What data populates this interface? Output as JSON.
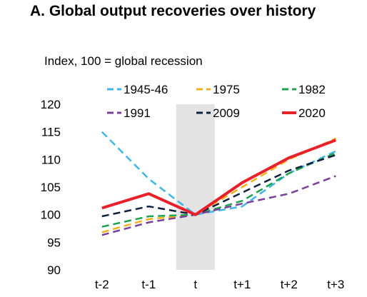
{
  "chart_data": {
    "type": "line",
    "title": "A. Global output recoveries over history",
    "ylabel": "Index, 100 = global recession",
    "xlabel": "",
    "categories": [
      "t-2",
      "t-1",
      "t",
      "t+1",
      "t+2",
      "t+3"
    ],
    "ylim": [
      90,
      120
    ],
    "yticks": [
      90,
      95,
      100,
      105,
      110,
      115,
      120
    ],
    "grid": false,
    "legend_position": "top",
    "shaded_category": "t",
    "shaded_color": "#e3e3e3",
    "series": [
      {
        "name": "1945-46",
        "values": [
          115.0,
          106.5,
          100.0,
          101.5,
          107.5,
          111.5
        ],
        "color": "#3fb7e8",
        "dash": "dashed",
        "width": 2.5
      },
      {
        "name": "1975",
        "values": [
          96.8,
          99.2,
          100.0,
          105.0,
          110.0,
          113.8
        ],
        "color": "#f2b21c",
        "dash": "dashed",
        "width": 2.5
      },
      {
        "name": "1982",
        "values": [
          97.8,
          99.7,
          100.0,
          102.5,
          107.5,
          111.2
        ],
        "color": "#1ca34f",
        "dash": "dashed",
        "width": 2.5
      },
      {
        "name": "1991",
        "values": [
          96.3,
          98.6,
          100.0,
          102.0,
          103.8,
          107.0
        ],
        "color": "#7a3f9a",
        "dash": "dashed",
        "width": 2.5
      },
      {
        "name": "2009",
        "values": [
          99.7,
          101.5,
          100.0,
          104.0,
          108.0,
          110.8
        ],
        "color": "#0f2140",
        "dash": "dashed",
        "width": 2.5
      },
      {
        "name": "2020",
        "values": [
          101.2,
          103.8,
          100.0,
          105.8,
          110.3,
          113.5
        ],
        "color": "#e8202a",
        "dash": "solid",
        "width": 4
      }
    ]
  }
}
